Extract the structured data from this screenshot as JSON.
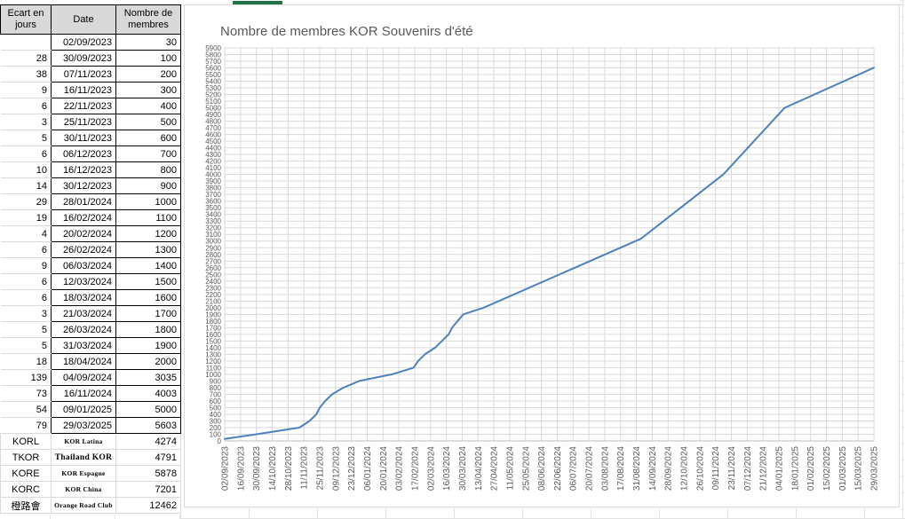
{
  "table": {
    "headers": [
      "Ecart en jours",
      "Date",
      "Nombre de membres"
    ],
    "rows": [
      {
        "ecart": "",
        "date": "02/09/2023",
        "membres": "30"
      },
      {
        "ecart": "28",
        "date": "30/09/2023",
        "membres": "100"
      },
      {
        "ecart": "38",
        "date": "07/11/2023",
        "membres": "200"
      },
      {
        "ecart": "9",
        "date": "16/11/2023",
        "membres": "300"
      },
      {
        "ecart": "6",
        "date": "22/11/2023",
        "membres": "400"
      },
      {
        "ecart": "3",
        "date": "25/11/2023",
        "membres": "500"
      },
      {
        "ecart": "5",
        "date": "30/11/2023",
        "membres": "600"
      },
      {
        "ecart": "6",
        "date": "06/12/2023",
        "membres": "700"
      },
      {
        "ecart": "10",
        "date": "16/12/2023",
        "membres": "800"
      },
      {
        "ecart": "14",
        "date": "30/12/2023",
        "membres": "900"
      },
      {
        "ecart": "29",
        "date": "28/01/2024",
        "membres": "1000"
      },
      {
        "ecart": "19",
        "date": "16/02/2024",
        "membres": "1100"
      },
      {
        "ecart": "4",
        "date": "20/02/2024",
        "membres": "1200"
      },
      {
        "ecart": "6",
        "date": "26/02/2024",
        "membres": "1300"
      },
      {
        "ecart": "9",
        "date": "06/03/2024",
        "membres": "1400"
      },
      {
        "ecart": "6",
        "date": "12/03/2024",
        "membres": "1500"
      },
      {
        "ecart": "6",
        "date": "18/03/2024",
        "membres": "1600"
      },
      {
        "ecart": "3",
        "date": "21/03/2024",
        "membres": "1700"
      },
      {
        "ecart": "5",
        "date": "26/03/2024",
        "membres": "1800"
      },
      {
        "ecart": "5",
        "date": "31/03/2024",
        "membres": "1900"
      },
      {
        "ecart": "18",
        "date": "18/04/2024",
        "membres": "2000"
      },
      {
        "ecart": "139",
        "date": "04/09/2024",
        "membres": "3035"
      },
      {
        "ecart": "73",
        "date": "16/11/2024",
        "membres": "4003"
      },
      {
        "ecart": "54",
        "date": "09/01/2025",
        "membres": "5000"
      },
      {
        "ecart": "79",
        "date": "29/03/2025",
        "membres": "5603"
      }
    ],
    "club_rows": [
      {
        "code": "KORL",
        "name": "KOR Latina",
        "value": "4274"
      },
      {
        "code": "TKOR",
        "name": "Thailand KOR",
        "value": "4791"
      },
      {
        "code": "KORE",
        "name": "KOR Espagne",
        "value": "5878"
      },
      {
        "code": "KORC",
        "name": "KOR China",
        "value": "7201"
      },
      {
        "code": "橙路會",
        "name": "Orange Road Club",
        "value": "12462"
      }
    ]
  },
  "chart_data": {
    "type": "line",
    "title": "Nombre de membres KOR Souvenirs d'été",
    "x": [
      "02/09/2023",
      "30/09/2023",
      "07/11/2023",
      "16/11/2023",
      "22/11/2023",
      "25/11/2023",
      "30/11/2023",
      "06/12/2023",
      "16/12/2023",
      "30/12/2023",
      "28/01/2024",
      "16/02/2024",
      "20/02/2024",
      "26/02/2024",
      "06/03/2024",
      "12/03/2024",
      "18/03/2024",
      "21/03/2024",
      "26/03/2024",
      "31/03/2024",
      "18/04/2024",
      "04/09/2024",
      "16/11/2024",
      "09/01/2025",
      "29/03/2025"
    ],
    "values": [
      30,
      100,
      200,
      300,
      400,
      500,
      600,
      700,
      800,
      900,
      1000,
      1100,
      1200,
      1300,
      1400,
      1500,
      1600,
      1700,
      1800,
      1900,
      2000,
      3035,
      4003,
      5000,
      5603
    ],
    "ylim": [
      0,
      5900
    ],
    "ystep": 100,
    "x_tick_labels": [
      "02/09/2023",
      "16/09/2023",
      "30/09/2023",
      "14/10/2023",
      "28/10/2023",
      "11/11/2023",
      "25/11/2023",
      "09/12/2023",
      "23/12/2023",
      "06/01/2024",
      "20/01/2024",
      "03/02/2024",
      "17/02/2024",
      "02/03/2024",
      "16/03/2024",
      "30/03/2024",
      "13/04/2024",
      "27/04/2024",
      "11/05/2024",
      "25/05/2024",
      "08/06/2024",
      "22/06/2024",
      "06/07/2024",
      "20/07/2024",
      "03/08/2024",
      "17/08/2024",
      "31/08/2024",
      "14/09/2024",
      "28/09/2024",
      "12/10/2024",
      "26/10/2024",
      "09/11/2024",
      "23/11/2024",
      "07/12/2024",
      "21/12/2024",
      "04/01/2025",
      "18/01/2025",
      "01/02/2025",
      "15/02/2025",
      "01/03/2025",
      "15/03/2025",
      "29/03/2025"
    ],
    "grid": true,
    "legend": "none"
  },
  "colors": {
    "header_bg": "#D9D9D9",
    "cell_border": "#000000",
    "grid_line": "#D9D9D9",
    "axis_line": "#BDBDBD",
    "axis_text": "#595959",
    "title_text": "#595959",
    "line": "#4F81BD",
    "selection_green": "#217346",
    "sheet_grid": "#E2E2E2"
  }
}
